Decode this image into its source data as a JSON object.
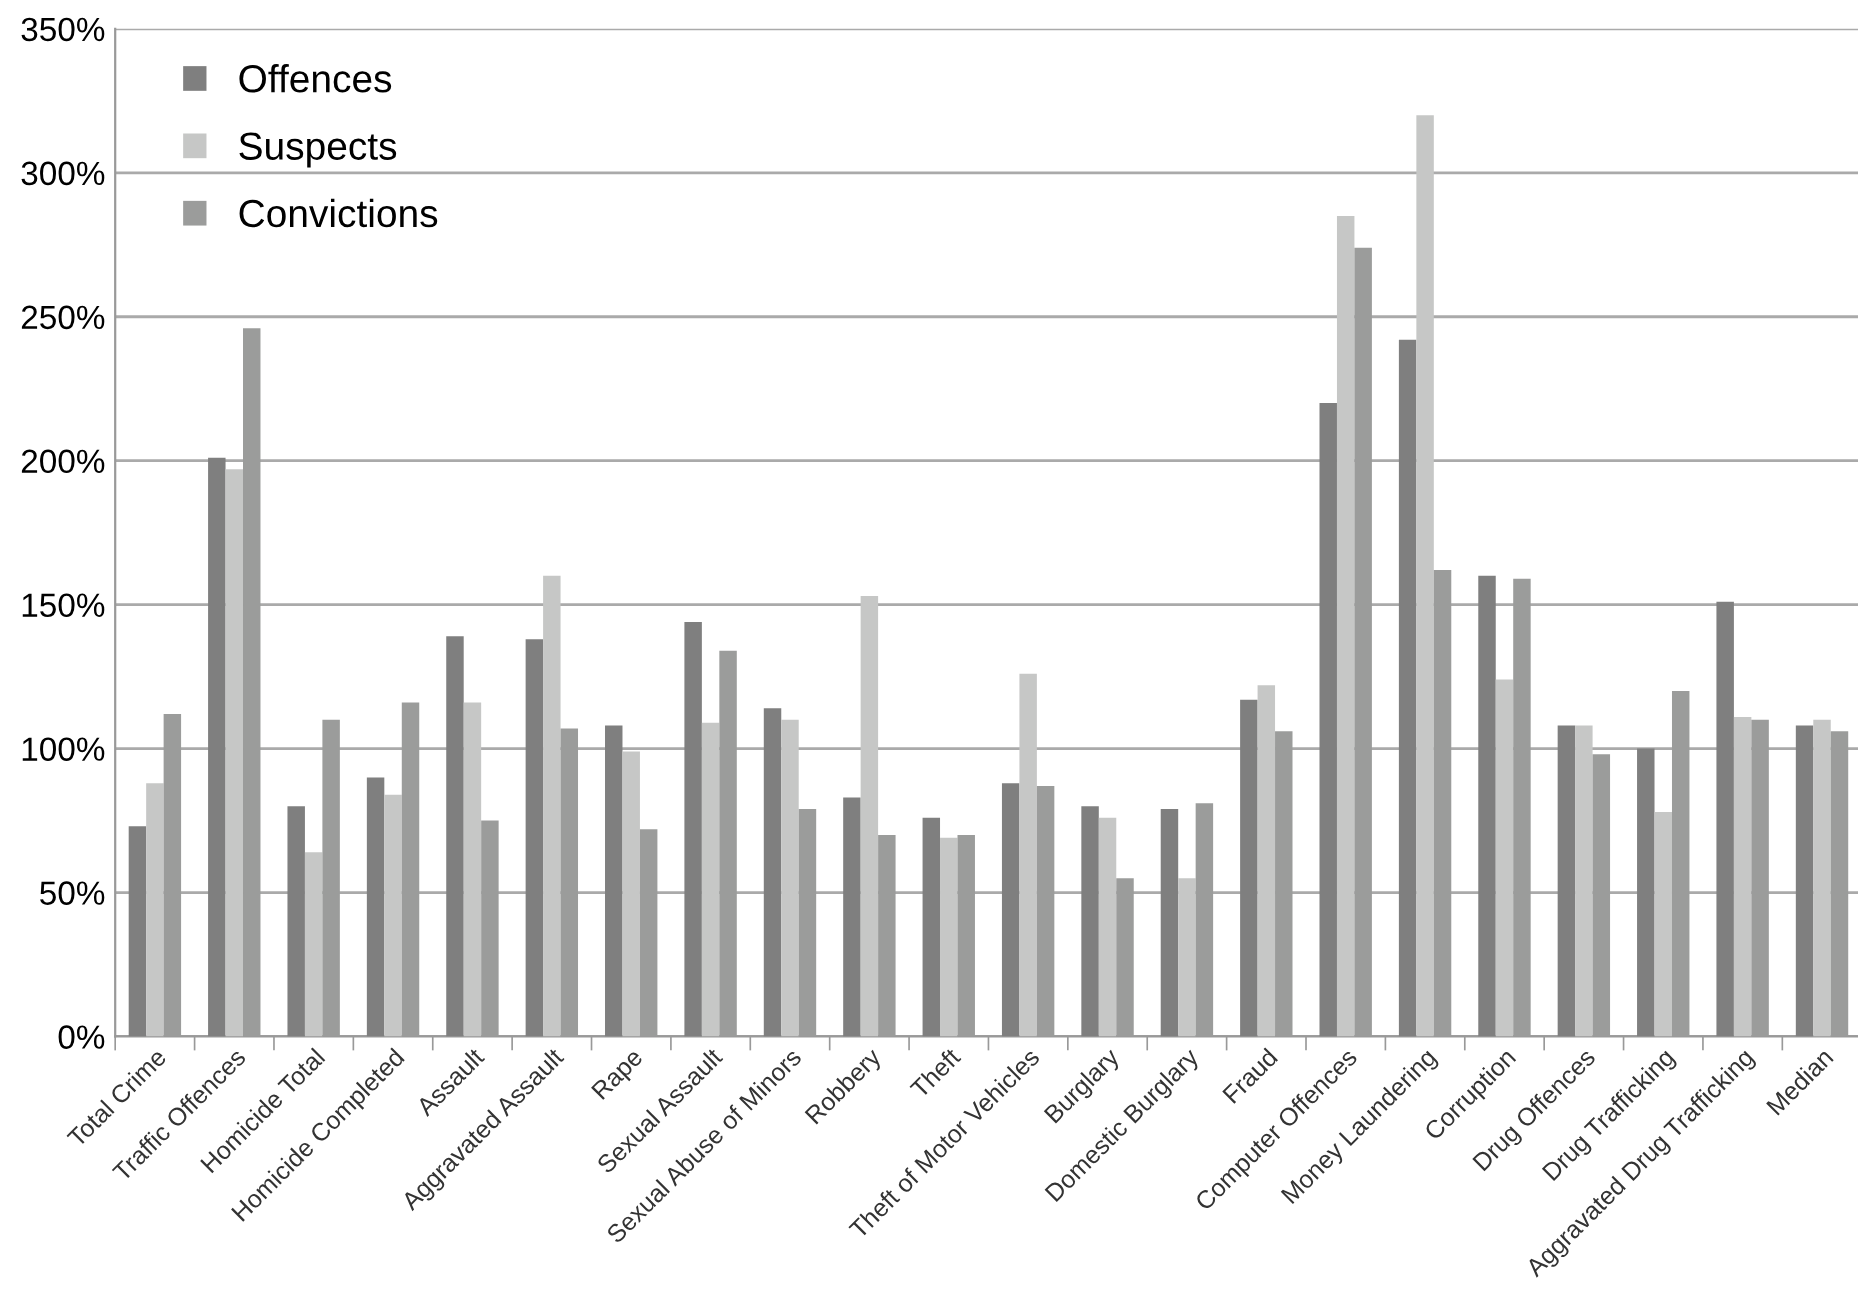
{
  "chart_data": {
    "type": "bar",
    "categories": [
      "Total Crime",
      "Traffic Offences",
      "Homicide Total",
      "Homicide Completed",
      "Assault",
      "Aggravated Assault",
      "Rape",
      "Sexual Assault",
      "Sexual Abuse of Minors",
      "Robbery",
      "Theft",
      "Theft of Motor Vehicles",
      "Burglary",
      "Domestic Burglary",
      "Fraud",
      "Computer Offences",
      "Money Laundering",
      "Corruption",
      "Drug Offences",
      "Drug Trafficking",
      "Aggravated Drug Trafficking",
      "Median"
    ],
    "series": [
      {
        "name": "Offences",
        "color": "#7f7f7f",
        "values": [
          73,
          201,
          80,
          90,
          139,
          138,
          108,
          144,
          114,
          83,
          76,
          88,
          80,
          79,
          117,
          220,
          242,
          160,
          108,
          100,
          151,
          108
        ]
      },
      {
        "name": "Suspects",
        "color": "#c6c7c6",
        "values": [
          88,
          197,
          64,
          84,
          116,
          160,
          99,
          109,
          110,
          153,
          69,
          126,
          76,
          55,
          122,
          285,
          320,
          124,
          108,
          78,
          111,
          110
        ]
      },
      {
        "name": "Convictions",
        "color": "#9b9c9b",
        "values": [
          112,
          246,
          110,
          116,
          75,
          107,
          72,
          134,
          79,
          70,
          70,
          87,
          55,
          81,
          106,
          274,
          162,
          159,
          98,
          120,
          110,
          106
        ]
      }
    ],
    "ylim": [
      0,
      350
    ],
    "yticks": [
      {
        "value": 0,
        "label": "0%"
      },
      {
        "value": 50,
        "label": "50%"
      },
      {
        "value": 100,
        "label": "100%"
      },
      {
        "value": 150,
        "label": "150%"
      },
      {
        "value": 200,
        "label": "200%"
      },
      {
        "value": 250,
        "label": "250%"
      },
      {
        "value": 300,
        "label": "300%"
      },
      {
        "value": 350,
        "label": "350%"
      }
    ],
    "grid": "y",
    "legend": "top left"
  }
}
